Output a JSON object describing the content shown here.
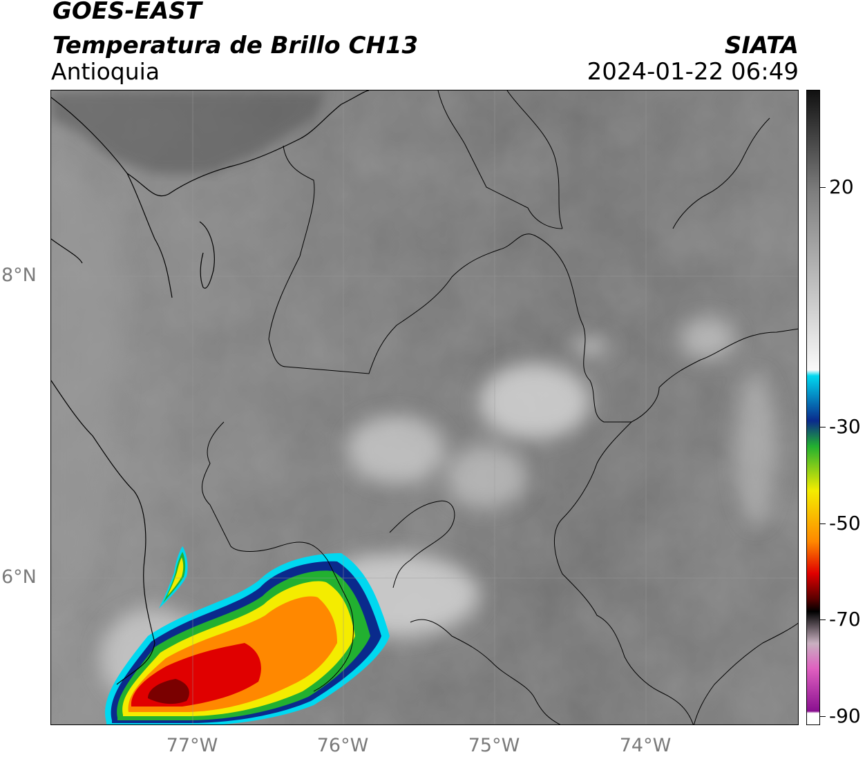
{
  "header": {
    "satellite": "GOES-EAST",
    "product": "Temperatura de Brillo CH13",
    "region": "Antioquia",
    "organization": "SIATA",
    "datetime": "2024-01-22 06:49"
  },
  "map": {
    "lat_labels": [
      "8°N",
      "6°N"
    ],
    "lon_labels": [
      "77°W",
      "76°W",
      "75°W",
      "74°W"
    ]
  },
  "colorbar": {
    "tick_labels": [
      "20",
      "-30",
      "-50",
      "-70",
      "-90"
    ],
    "colors": {
      "cyan": "#00d8f0",
      "blue": "#0a2a8c",
      "green": "#22b030",
      "yellow": "#f4ec00",
      "orange": "#ff8800",
      "red": "#e00000",
      "darkred": "#7a0000",
      "black": "#000000",
      "pink": "#e060c0",
      "purple": "#8a1090"
    }
  }
}
